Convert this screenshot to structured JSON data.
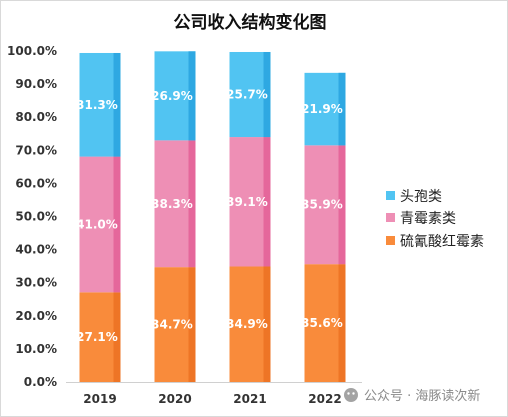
{
  "chart_data": {
    "type": "bar",
    "stacked": true,
    "title": "公司收入结构变化图",
    "categories": [
      "2019",
      "2020",
      "2021",
      "2022"
    ],
    "series": [
      {
        "name": "硫氰酸红霉素",
        "values": [
          27.1,
          34.7,
          34.9,
          35.6
        ],
        "color": "#F98B3B",
        "shade": "#EE7526"
      },
      {
        "name": "青霉素类",
        "values": [
          41.0,
          38.3,
          39.1,
          35.9
        ],
        "color": "#EE8FB5",
        "shade": "#E5679B"
      },
      {
        "name": "头孢类",
        "values": [
          31.3,
          26.9,
          25.7,
          21.9
        ],
        "color": "#51C4F2",
        "shade": "#2EA8E2"
      }
    ],
    "y_ticks": [
      0,
      10,
      20,
      30,
      40,
      50,
      60,
      70,
      80,
      90,
      100
    ],
    "ylim": [
      0,
      100
    ],
    "xlabel": "",
    "ylabel": "",
    "grid": false,
    "legend_position": "right"
  },
  "watermark": {
    "text": "公众号 · 海豚读次新",
    "icon": "wechat-icon"
  }
}
